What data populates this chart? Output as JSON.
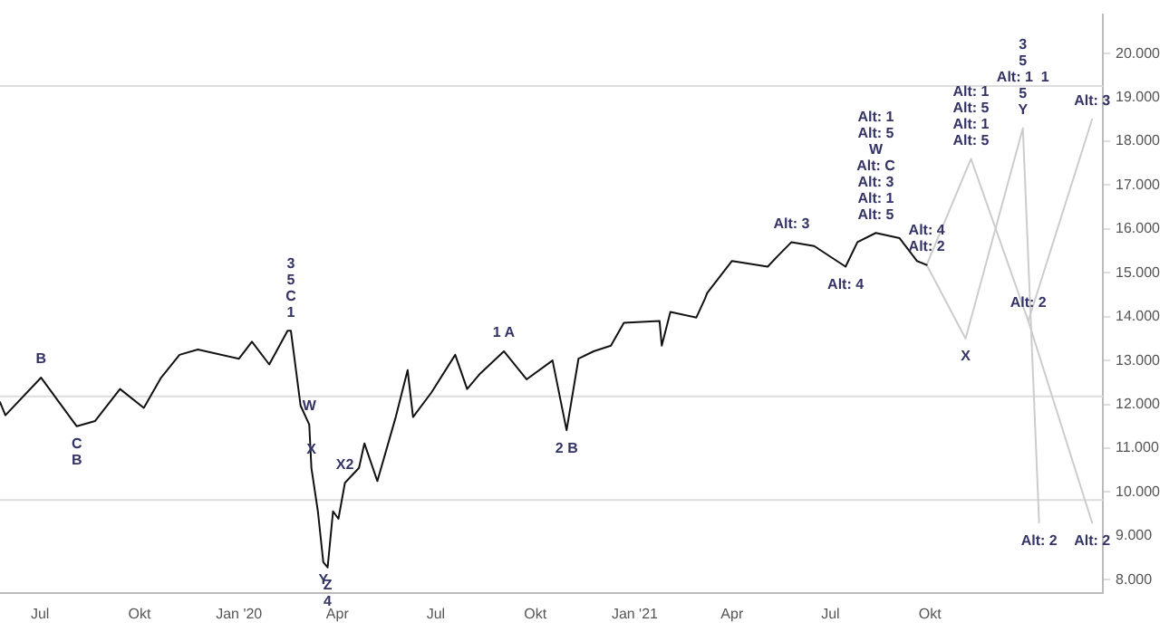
{
  "chart_data": {
    "type": "line",
    "x": [
      "2019-05-25",
      "2019-05-30",
      "2019-07-02",
      "2019-08-04",
      "2019-08-21",
      "2019-09-13",
      "2019-10-05",
      "2019-10-21",
      "2019-11-07",
      "2019-11-24",
      "2020-01-01",
      "2020-01-13",
      "2020-01-29",
      "2020-02-15",
      "2020-02-18",
      "2020-02-27",
      "2020-03-06",
      "2020-03-08",
      "2020-03-14",
      "2020-03-19",
      "2020-03-23",
      "2020-03-28",
      "2020-04-02",
      "2020-04-08",
      "2020-04-21",
      "2020-04-26",
      "2020-05-08",
      "2020-05-25",
      "2020-06-05",
      "2020-06-10",
      "2020-06-27",
      "2020-07-19",
      "2020-07-30",
      "2020-08-11",
      "2020-09-02",
      "2020-09-23",
      "2020-10-17",
      "2020-10-30",
      "2020-11-10",
      "2020-11-24",
      "2020-12-10",
      "2020-12-22",
      "2021-01-24",
      "2021-01-26",
      "2021-02-03",
      "2021-02-27",
      "2021-03-07",
      "2021-03-09",
      "2021-04-01",
      "2021-05-04",
      "2021-05-14",
      "2021-05-26",
      "2021-06-16",
      "2021-07-15",
      "2021-07-26",
      "2021-08-12",
      "2021-09-03",
      "2021-09-19",
      "2021-09-28"
    ],
    "series": [
      {
        "color": "#111111",
        "values": [
          12050,
          11750,
          12610,
          11500,
          11620,
          12350,
          11920,
          12610,
          13130,
          13250,
          13040,
          13430,
          12910,
          13680,
          13680,
          11970,
          11540,
          10550,
          9560,
          8400,
          8280,
          9560,
          9390,
          10210,
          10550,
          11110,
          10250,
          11710,
          12780,
          11710,
          12270,
          13130,
          12350,
          12700,
          13210,
          12570,
          13000,
          11410,
          13040,
          13210,
          13340,
          13860,
          13900,
          13340,
          14110,
          13980,
          14410,
          14540,
          15270,
          15140,
          15400,
          15700,
          15610,
          15140,
          15700,
          15910,
          15790,
          15270,
          15180
        ]
      },
      {
        "color": "#cccccc",
        "x": [
          "2021-09-28",
          "2021-11-08",
          "2021-12-31",
          "2022-02-28"
        ],
        "values": [
          15180,
          17600,
          13900,
          18500
        ]
      },
      {
        "color": "#cccccc",
        "x": [
          "2021-09-28",
          "2021-11-03",
          "2021-12-26",
          "2022-01-10"
        ],
        "values": [
          15180,
          13500,
          18300,
          9300
        ]
      },
      {
        "color": "#cccccc",
        "x": [
          "2021-12-31",
          "2022-02-28"
        ],
        "values": [
          13900,
          9300
        ]
      }
    ],
    "xlim": [
      "2019-05-25",
      "2022-03-10"
    ],
    "xticks": [
      {
        "value": "2019-07-01",
        "label": "Jul"
      },
      {
        "value": "2019-10-01",
        "label": "Okt"
      },
      {
        "value": "2020-01-01",
        "label": "Jan '20"
      },
      {
        "value": "2020-04-01",
        "label": "Apr"
      },
      {
        "value": "2020-07-01",
        "label": "Jul"
      },
      {
        "value": "2020-10-01",
        "label": "Okt"
      },
      {
        "value": "2021-01-01",
        "label": "Jan '21"
      },
      {
        "value": "2021-04-01",
        "label": "Apr"
      },
      {
        "value": "2021-07-01",
        "label": "Jul"
      },
      {
        "value": "2021-10-01",
        "label": "Okt"
      }
    ],
    "ylim": [
      7700,
      20900
    ],
    "yticks": [
      {
        "value": 8000,
        "label": "8.000"
      },
      {
        "value": 9000,
        "label": "9.000"
      },
      {
        "value": 10000,
        "label": "10.000"
      },
      {
        "value": 11000,
        "label": "11.000"
      },
      {
        "value": 12000,
        "label": "12.000"
      },
      {
        "value": 13000,
        "label": "13.000"
      },
      {
        "value": 14000,
        "label": "14.000"
      },
      {
        "value": 15000,
        "label": "15.000"
      },
      {
        "value": 16000,
        "label": "16.000"
      },
      {
        "value": 17000,
        "label": "17.000"
      },
      {
        "value": 18000,
        "label": "18.000"
      },
      {
        "value": 19000,
        "label": "19.000"
      },
      {
        "value": 20000,
        "label": "20.000"
      }
    ],
    "grid": false,
    "legend": false,
    "marker": "none",
    "line_style": "solid",
    "ref_lines": [
      {
        "axis": "y",
        "value": 19260,
        "color": "#dddddd"
      },
      {
        "axis": "y",
        "value": 12180,
        "color": "#dddddd"
      },
      {
        "axis": "y",
        "value": 9820,
        "color": "#dddddd"
      }
    ],
    "annotations": [
      {
        "text": "B",
        "x": "2019-07-02",
        "y": 12610
      },
      {
        "text": "C",
        "x": "2019-08-04",
        "y": 11500
      },
      {
        "text": "B",
        "x": "2019-08-04",
        "y": 11500
      },
      {
        "text": "1",
        "x": "2020-02-18",
        "y": 13680
      },
      {
        "text": "C",
        "x": "2020-02-18",
        "y": 13680
      },
      {
        "text": "5",
        "x": "2020-02-18",
        "y": 13680
      },
      "3",
      {
        "text": "W",
        "x": "2020-03-06",
        "y": 11540
      },
      {
        "text": "X",
        "x": "2020-03-08",
        "y": 10550
      },
      {
        "text": "X2",
        "x": "2020-04-08",
        "y": 10210
      },
      {
        "text": "Y",
        "x": "2020-03-19",
        "y": 8400
      },
      {
        "text": "Z",
        "x": "2020-03-23",
        "y": 8280
      },
      {
        "text": "4",
        "x": "2020-03-23",
        "y": 8280
      },
      {
        "text": "1 A",
        "x": "2020-09-02",
        "y": 13210
      },
      {
        "text": "2 B",
        "x": "2020-10-30",
        "y": 11410
      },
      {
        "text": "Alt: 5",
        "x": "2021-08-12",
        "y": 15910
      },
      {
        "text": "Alt: 1",
        "x": "2021-08-12",
        "y": 15910
      },
      {
        "text": "Alt: 3",
        "x": "2021-08-12",
        "y": 15910
      },
      "Alt: C",
      "W",
      "Alt: 5",
      "Alt: 1",
      {
        "text": "Alt: 3",
        "x": "2021-05-26",
        "y": 15700
      },
      {
        "text": "Alt: 4",
        "x": "2021-07-15",
        "y": 15140
      },
      {
        "text": "Alt: 2",
        "x": "2021-09-28",
        "y": 15180
      },
      {
        "text": "Alt: 4",
        "x": "2021-09-28",
        "y": 15180
      },
      {
        "text": "Alt: 5",
        "x": "2021-11-08",
        "y": 17600
      },
      {
        "text": "Alt: 1",
        "x": "2021-11-08",
        "y": 17600
      },
      {
        "text": "Alt: 5",
        "x": "2021-11-08",
        "y": 17600
      },
      "Alt: 1",
      {
        "text": "Alt: 2",
        "x": "2021-12-31",
        "y": 13900
      },
      {
        "text": "Alt: 3",
        "x": "2022-02-28",
        "y": 18500
      },
      {
        "text": "X",
        "x": "2021-11-03",
        "y": 13500
      },
      {
        "text": "Y",
        "x": "2021-12-26",
        "y": 18300
      },
      {
        "text": "5",
        "x": "2021-12-26",
        "y": 18300
      },
      {
        "text": "Alt: 1  1",
        "x": "2021-12-26",
        "y": 18300
      },
      "5",
      "3",
      {
        "text": "Alt: 2",
        "x": "2022-01-10",
        "y": 9300
      },
      {
        "text": "Alt: 2",
        "x": "2022-02-28",
        "y": 9300
      }
    ]
  }
}
